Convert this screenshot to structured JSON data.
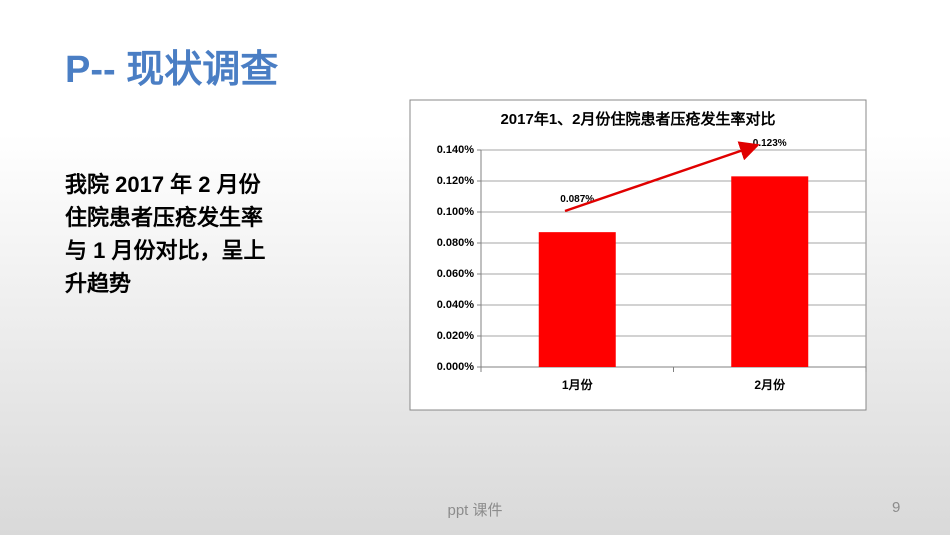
{
  "slide": {
    "title": "P-- 现状调查",
    "body": [
      "我院 2017 年 2 月份",
      "住院患者压疮发生率",
      "与 1 月份对比，呈上",
      "升趋势"
    ],
    "footer": "ppt 课件",
    "page_number": "9"
  },
  "chart_data": {
    "type": "bar",
    "title": "2017年1、2月份住院患者压疮发生率对比",
    "categories": [
      "1月份",
      "2月份"
    ],
    "values": [
      0.087,
      0.123
    ],
    "value_labels": [
      "0.087%",
      "0.123%"
    ],
    "color": "#ff0000",
    "ylim": [
      0,
      0.14
    ],
    "yticks": [
      {
        "value": 0,
        "label": "0.000%"
      },
      {
        "value": 0.02,
        "label": "0.020%"
      },
      {
        "value": 0.04,
        "label": "0.040%"
      },
      {
        "value": 0.06,
        "label": "0.060%"
      },
      {
        "value": 0.08,
        "label": "0.080%"
      },
      {
        "value": 0.1,
        "label": "0.100%"
      },
      {
        "value": 0.12,
        "label": "0.120%"
      },
      {
        "value": 0.14,
        "label": "0.140%"
      }
    ],
    "grid": true
  }
}
